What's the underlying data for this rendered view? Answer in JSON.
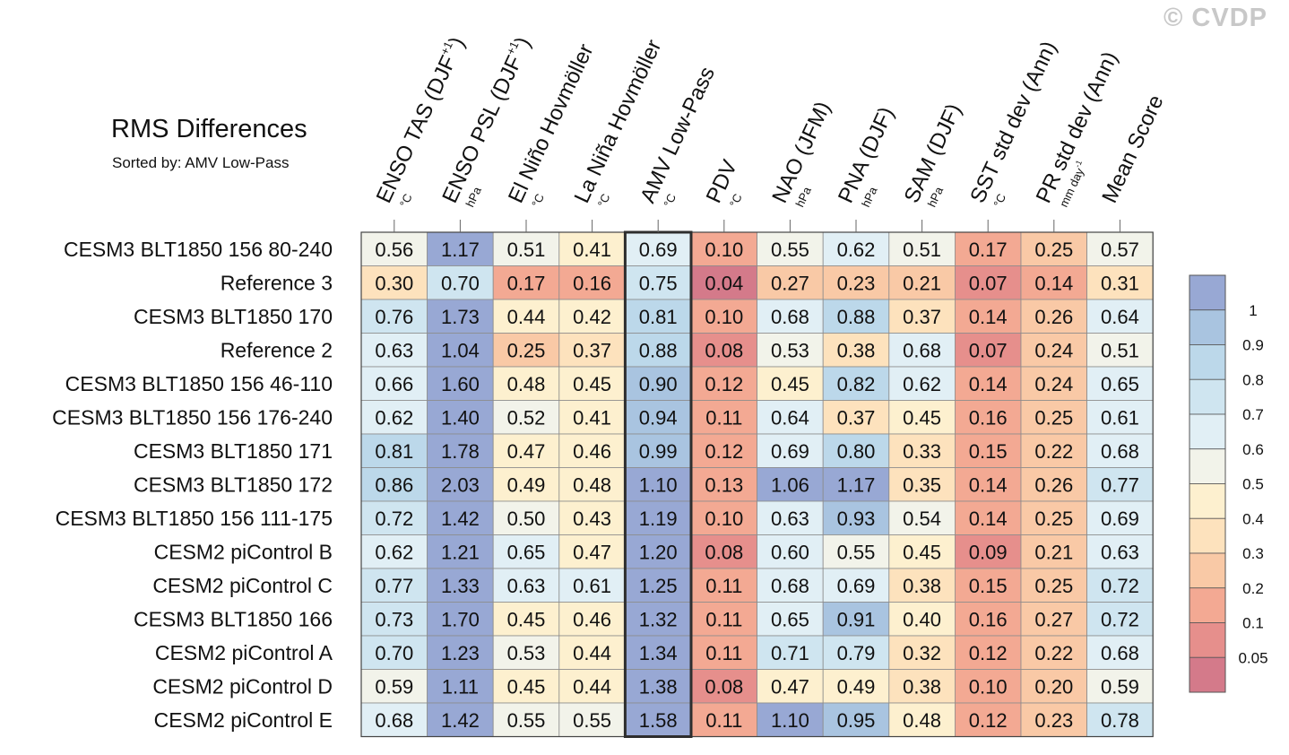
{
  "watermark": "© CVDP",
  "chart_data": {
    "type": "heatmap",
    "title": "RMS Differences",
    "subtitle": "Sorted by: AMV Low-Pass",
    "highlight_column": "AMV Low-Pass",
    "columns": [
      {
        "label": "ENSO TAS (DJF",
        "sup": "+1",
        "suffix": ")",
        "unit": "°C"
      },
      {
        "label": "ENSO PSL (DJF",
        "sup": "+1",
        "suffix": ")",
        "unit": "hPa"
      },
      {
        "label": "El Niño Hovmöller",
        "sup": "",
        "suffix": "",
        "unit": "°C"
      },
      {
        "label": "La Niña Hovmöller",
        "sup": "",
        "suffix": "",
        "unit": "°C"
      },
      {
        "label": "AMV Low-Pass",
        "sup": "",
        "suffix": "",
        "unit": "°C"
      },
      {
        "label": "PDV",
        "sup": "",
        "suffix": "",
        "unit": "°C"
      },
      {
        "label": "NAO (JFM)",
        "sup": "",
        "suffix": "",
        "unit": "hPa"
      },
      {
        "label": "PNA (DJF)",
        "sup": "",
        "suffix": "",
        "unit": "hPa"
      },
      {
        "label": "SAM (DJF)",
        "sup": "",
        "suffix": "",
        "unit": "hPa"
      },
      {
        "label": "SST std dev (Ann)",
        "sup": "",
        "suffix": "",
        "unit": "°C"
      },
      {
        "label": "PR std dev (Ann)",
        "sup": "",
        "suffix": "",
        "unit": "mm day",
        "unit_sup": "-1"
      },
      {
        "label": "Mean Score",
        "sup": "",
        "suffix": "",
        "unit": ""
      }
    ],
    "rows": [
      "CESM3 BLT1850 156 80-240",
      "Reference 3",
      "CESM3 BLT1850 170",
      "Reference 2",
      "CESM3 BLT1850 156 46-110",
      "CESM3 BLT1850 156 176-240",
      "CESM3 BLT1850 171",
      "CESM3 BLT1850 172",
      "CESM3 BLT1850 156 111-175",
      "CESM2 piControl B",
      "CESM2 piControl C",
      "CESM3 BLT1850 166",
      "CESM2 piControl A",
      "CESM2 piControl D",
      "CESM2 piControl E"
    ],
    "values": [
      [
        "0.56",
        "1.17",
        "0.51",
        "0.41",
        "0.69",
        "0.10",
        "0.55",
        "0.62",
        "0.51",
        "0.17",
        "0.25",
        "0.57"
      ],
      [
        "0.30",
        "0.70",
        "0.17",
        "0.16",
        "0.75",
        "0.04",
        "0.27",
        "0.23",
        "0.21",
        "0.07",
        "0.14",
        "0.31"
      ],
      [
        "0.76",
        "1.73",
        "0.44",
        "0.42",
        "0.81",
        "0.10",
        "0.68",
        "0.88",
        "0.37",
        "0.14",
        "0.26",
        "0.64"
      ],
      [
        "0.63",
        "1.04",
        "0.25",
        "0.37",
        "0.88",
        "0.08",
        "0.53",
        "0.38",
        "0.68",
        "0.07",
        "0.24",
        "0.51"
      ],
      [
        "0.66",
        "1.60",
        "0.48",
        "0.45",
        "0.90",
        "0.12",
        "0.45",
        "0.82",
        "0.62",
        "0.14",
        "0.24",
        "0.65"
      ],
      [
        "0.62",
        "1.40",
        "0.52",
        "0.41",
        "0.94",
        "0.11",
        "0.64",
        "0.37",
        "0.45",
        "0.16",
        "0.25",
        "0.61"
      ],
      [
        "0.81",
        "1.78",
        "0.47",
        "0.46",
        "0.99",
        "0.12",
        "0.69",
        "0.80",
        "0.33",
        "0.15",
        "0.22",
        "0.68"
      ],
      [
        "0.86",
        "2.03",
        "0.49",
        "0.48",
        "1.10",
        "0.13",
        "1.06",
        "1.17",
        "0.35",
        "0.14",
        "0.26",
        "0.77"
      ],
      [
        "0.72",
        "1.42",
        "0.50",
        "0.43",
        "1.19",
        "0.10",
        "0.63",
        "0.93",
        "0.54",
        "0.14",
        "0.25",
        "0.69"
      ],
      [
        "0.62",
        "1.21",
        "0.65",
        "0.47",
        "1.20",
        "0.08",
        "0.60",
        "0.55",
        "0.45",
        "0.09",
        "0.21",
        "0.63"
      ],
      [
        "0.77",
        "1.33",
        "0.63",
        "0.61",
        "1.25",
        "0.11",
        "0.68",
        "0.69",
        "0.38",
        "0.15",
        "0.25",
        "0.72"
      ],
      [
        "0.73",
        "1.70",
        "0.45",
        "0.46",
        "1.32",
        "0.11",
        "0.65",
        "0.91",
        "0.40",
        "0.16",
        "0.27",
        "0.72"
      ],
      [
        "0.70",
        "1.23",
        "0.53",
        "0.44",
        "1.34",
        "0.11",
        "0.71",
        "0.79",
        "0.32",
        "0.12",
        "0.22",
        "0.68"
      ],
      [
        "0.59",
        "1.11",
        "0.45",
        "0.44",
        "1.38",
        "0.08",
        "0.47",
        "0.49",
        "0.38",
        "0.10",
        "0.20",
        "0.59"
      ],
      [
        "0.68",
        "1.42",
        "0.55",
        "0.55",
        "1.58",
        "0.11",
        "1.10",
        "0.95",
        "0.48",
        "0.12",
        "0.23",
        "0.78"
      ]
    ],
    "colorbar": {
      "labels": [
        "1",
        "0.9",
        "0.8",
        "0.7",
        "0.6",
        "0.5",
        "0.4",
        "0.3",
        "0.2",
        "0.1",
        "0.05"
      ],
      "bins": [
        {
          "min": 1.0,
          "max": 99,
          "color": "#98a8d4"
        },
        {
          "min": 0.9,
          "max": 1.0,
          "color": "#a9c4e0"
        },
        {
          "min": 0.8,
          "max": 0.9,
          "color": "#bcd8ea"
        },
        {
          "min": 0.7,
          "max": 0.8,
          "color": "#cfe5f0"
        },
        {
          "min": 0.6,
          "max": 0.7,
          "color": "#e1eff5"
        },
        {
          "min": 0.5,
          "max": 0.6,
          "color": "#f2f3ea"
        },
        {
          "min": 0.4,
          "max": 0.5,
          "color": "#fdf0cf"
        },
        {
          "min": 0.3,
          "max": 0.4,
          "color": "#fde2bd"
        },
        {
          "min": 0.2,
          "max": 0.3,
          "color": "#f9c9a6"
        },
        {
          "min": 0.1,
          "max": 0.2,
          "color": "#f3a993"
        },
        {
          "min": 0.05,
          "max": 0.1,
          "color": "#e68f8c"
        },
        {
          "min": 0.0,
          "max": 0.05,
          "color": "#d47a8a"
        }
      ]
    }
  }
}
